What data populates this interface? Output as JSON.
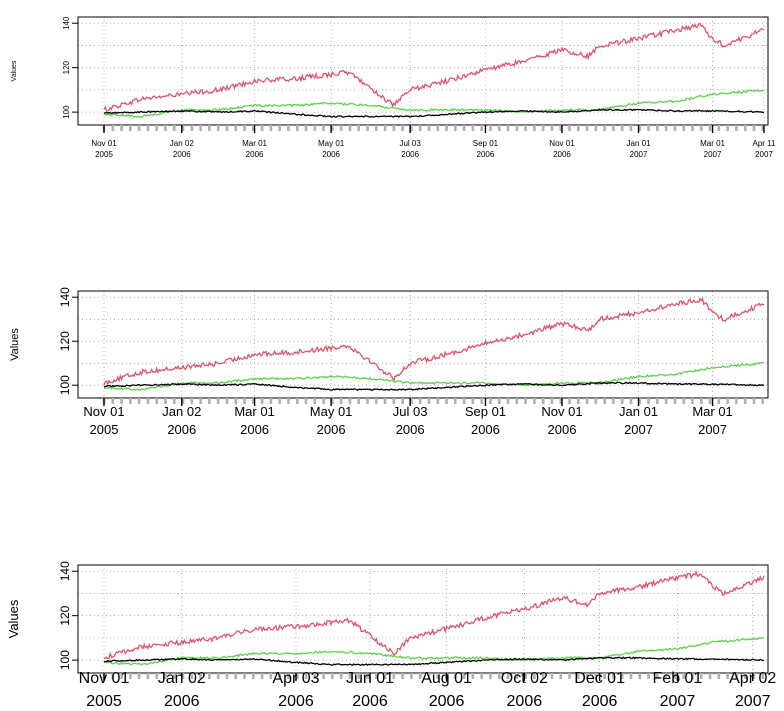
{
  "chart_data": [
    {
      "type": "line",
      "ylabel": "Values",
      "yticks": [
        100,
        120,
        140
      ],
      "ylim": [
        96,
        141
      ],
      "x_range": [
        "2005-11-01",
        "2007-04-11"
      ],
      "xtick_labels": [
        {
          "date": "2005-11-01",
          "top": "Nov 01",
          "bottom": "2005"
        },
        {
          "date": "2006-01-02",
          "top": "Jan 02",
          "bottom": "2006"
        },
        {
          "date": "2006-03-01",
          "top": "Mar 01",
          "bottom": "2006"
        },
        {
          "date": "2006-05-01",
          "top": "May 01",
          "bottom": "2006"
        },
        {
          "date": "2006-07-03",
          "top": "Jul 03",
          "bottom": "2006"
        },
        {
          "date": "2006-09-01",
          "top": "Sep 01",
          "bottom": "2006"
        },
        {
          "date": "2006-11-01",
          "top": "Nov 01",
          "bottom": "2006"
        },
        {
          "date": "2007-01-01",
          "top": "Jan 01",
          "bottom": "2007"
        },
        {
          "date": "2007-03-01",
          "top": "Mar 01",
          "bottom": "2007"
        },
        {
          "date": "2007-04-11",
          "top": "Apr 11",
          "bottom": "2007"
        }
      ],
      "grid": true,
      "series": [
        {
          "color": "#df536b",
          "x": [
            "2005-11-01",
            "2005-12-01",
            "2006-01-02",
            "2006-02-01",
            "2006-03-01",
            "2006-04-03",
            "2006-05-01",
            "2006-05-15",
            "2006-06-01",
            "2006-06-20",
            "2006-07-03",
            "2006-08-01",
            "2006-09-01",
            "2006-10-02",
            "2006-11-01",
            "2006-11-22",
            "2006-12-01",
            "2007-01-01",
            "2007-02-01",
            "2007-02-20",
            "2007-03-01",
            "2007-03-10",
            "2007-04-11"
          ],
          "y": [
            101,
            106,
            108,
            110,
            114,
            115,
            117,
            118,
            111,
            103,
            110,
            114,
            119,
            123,
            128,
            125,
            130,
            133,
            137,
            139,
            133,
            130,
            137
          ]
        },
        {
          "color": "#61d04f",
          "x": [
            "2005-11-01",
            "2005-12-01",
            "2006-01-02",
            "2006-02-01",
            "2006-03-01",
            "2006-04-03",
            "2006-05-01",
            "2006-06-01",
            "2006-07-03",
            "2006-08-01",
            "2006-09-01",
            "2006-10-02",
            "2006-11-01",
            "2006-12-01",
            "2007-01-01",
            "2007-02-01",
            "2007-03-01",
            "2007-04-11"
          ],
          "y": [
            99,
            98,
            101,
            101,
            103,
            103,
            104,
            103,
            101,
            101,
            101,
            100,
            101,
            101,
            104,
            105,
            108,
            110
          ]
        },
        {
          "color": "#000000",
          "x": [
            "2005-11-01",
            "2005-12-01",
            "2006-01-02",
            "2006-02-01",
            "2006-03-01",
            "2006-04-03",
            "2006-05-01",
            "2006-06-01",
            "2006-07-03",
            "2006-08-01",
            "2006-09-01",
            "2006-10-02",
            "2006-11-01",
            "2006-12-01",
            "2007-01-01",
            "2007-02-01",
            "2007-03-01",
            "2007-04-11"
          ],
          "y": [
            99.5,
            100,
            100.5,
            100,
            100.5,
            99,
            98,
            98,
            98,
            99,
            100,
            100.5,
            100,
            101,
            101,
            100.5,
            100.5,
            100
          ]
        }
      ]
    },
    {
      "type": "line",
      "ylabel": "Values",
      "yticks": [
        100,
        120,
        140
      ],
      "ylim": [
        96,
        141
      ],
      "x_range": [
        "2005-11-01",
        "2007-04-11"
      ],
      "xtick_labels": [
        {
          "date": "2005-11-01",
          "top": "Nov 01",
          "bottom": "2005"
        },
        {
          "date": "2006-01-02",
          "top": "Jan 02",
          "bottom": "2006"
        },
        {
          "date": "2006-03-01",
          "top": "Mar 01",
          "bottom": "2006"
        },
        {
          "date": "2006-05-01",
          "top": "May 01",
          "bottom": "2006"
        },
        {
          "date": "2006-07-03",
          "top": "Jul 03",
          "bottom": "2006"
        },
        {
          "date": "2006-09-01",
          "top": "Sep 01",
          "bottom": "2006"
        },
        {
          "date": "2006-11-01",
          "top": "Nov 01",
          "bottom": "2006"
        },
        {
          "date": "2007-01-01",
          "top": "Jan 01",
          "bottom": "2007"
        },
        {
          "date": "2007-03-01",
          "top": "Mar 01",
          "bottom": "2007"
        }
      ],
      "grid": true,
      "series": [
        {
          "color": "#df536b",
          "x": [
            "2005-11-01",
            "2005-12-01",
            "2006-01-02",
            "2006-02-01",
            "2006-03-01",
            "2006-04-03",
            "2006-05-01",
            "2006-05-15",
            "2006-06-01",
            "2006-06-20",
            "2006-07-03",
            "2006-08-01",
            "2006-09-01",
            "2006-10-02",
            "2006-11-01",
            "2006-11-22",
            "2006-12-01",
            "2007-01-01",
            "2007-02-01",
            "2007-02-20",
            "2007-03-01",
            "2007-03-10",
            "2007-04-11"
          ],
          "y": [
            101,
            106,
            108,
            110,
            114,
            115,
            117,
            118,
            111,
            103,
            110,
            114,
            119,
            123,
            128,
            125,
            130,
            133,
            137,
            139,
            133,
            130,
            137
          ]
        },
        {
          "color": "#61d04f",
          "x": [
            "2005-11-01",
            "2005-12-01",
            "2006-01-02",
            "2006-02-01",
            "2006-03-01",
            "2006-04-03",
            "2006-05-01",
            "2006-06-01",
            "2006-07-03",
            "2006-08-01",
            "2006-09-01",
            "2006-10-02",
            "2006-11-01",
            "2006-12-01",
            "2007-01-01",
            "2007-02-01",
            "2007-03-01",
            "2007-04-11"
          ],
          "y": [
            99,
            98,
            101,
            101,
            103,
            103,
            104,
            103,
            101,
            101,
            101,
            100,
            101,
            101,
            104,
            105,
            108,
            110
          ]
        },
        {
          "color": "#000000",
          "x": [
            "2005-11-01",
            "2005-12-01",
            "2006-01-02",
            "2006-02-01",
            "2006-03-01",
            "2006-04-03",
            "2006-05-01",
            "2006-06-01",
            "2006-07-03",
            "2006-08-01",
            "2006-09-01",
            "2006-10-02",
            "2006-11-01",
            "2006-12-01",
            "2007-01-01",
            "2007-02-01",
            "2007-03-01",
            "2007-04-11"
          ],
          "y": [
            99.5,
            100,
            100.5,
            100,
            100.5,
            99,
            98,
            98,
            98,
            99,
            100,
            100.5,
            100,
            101,
            101,
            100.5,
            100.5,
            100
          ]
        }
      ]
    },
    {
      "type": "line",
      "ylabel": "Values",
      "yticks": [
        100,
        120,
        140
      ],
      "ylim": [
        96,
        141
      ],
      "x_range": [
        "2005-11-01",
        "2007-04-11"
      ],
      "xtick_labels": [
        {
          "date": "2005-11-01",
          "top": "Nov 01",
          "bottom": "2005"
        },
        {
          "date": "2006-01-02",
          "top": "Jan 02",
          "bottom": "2006"
        },
        {
          "date": "2006-04-03",
          "top": "Apr 03",
          "bottom": "2006"
        },
        {
          "date": "2006-06-01",
          "top": "Jun 01",
          "bottom": "2006"
        },
        {
          "date": "2006-08-01",
          "top": "Aug 01",
          "bottom": "2006"
        },
        {
          "date": "2006-10-02",
          "top": "Oct 02",
          "bottom": "2006"
        },
        {
          "date": "2006-12-01",
          "top": "Dec 01",
          "bottom": "2006"
        },
        {
          "date": "2007-02-01",
          "top": "Feb 01",
          "bottom": "2007"
        },
        {
          "date": "2007-04-02",
          "top": "Apr 02",
          "bottom": "2007"
        }
      ],
      "grid": true,
      "series": [
        {
          "color": "#df536b",
          "x": [
            "2005-11-01",
            "2005-12-01",
            "2006-01-02",
            "2006-02-01",
            "2006-03-01",
            "2006-04-03",
            "2006-05-01",
            "2006-05-15",
            "2006-06-01",
            "2006-06-20",
            "2006-07-03",
            "2006-08-01",
            "2006-09-01",
            "2006-10-02",
            "2006-11-01",
            "2006-11-22",
            "2006-12-01",
            "2007-01-01",
            "2007-02-01",
            "2007-02-20",
            "2007-03-01",
            "2007-03-10",
            "2007-04-11"
          ],
          "y": [
            101,
            106,
            108,
            110,
            114,
            115,
            117,
            118,
            111,
            103,
            110,
            114,
            119,
            123,
            128,
            125,
            130,
            133,
            137,
            139,
            133,
            130,
            137
          ]
        },
        {
          "color": "#61d04f",
          "x": [
            "2005-11-01",
            "2005-12-01",
            "2006-01-02",
            "2006-02-01",
            "2006-03-01",
            "2006-04-03",
            "2006-05-01",
            "2006-06-01",
            "2006-07-03",
            "2006-08-01",
            "2006-09-01",
            "2006-10-02",
            "2006-11-01",
            "2006-12-01",
            "2007-01-01",
            "2007-02-01",
            "2007-03-01",
            "2007-04-11"
          ],
          "y": [
            99,
            98,
            101,
            101,
            103,
            103,
            104,
            103,
            101,
            101,
            101,
            100,
            101,
            101,
            104,
            105,
            108,
            110
          ]
        },
        {
          "color": "#000000",
          "x": [
            "2005-11-01",
            "2005-12-01",
            "2006-01-02",
            "2006-02-01",
            "2006-03-01",
            "2006-04-03",
            "2006-05-01",
            "2006-06-01",
            "2006-07-03",
            "2006-08-01",
            "2006-09-01",
            "2006-10-02",
            "2006-11-01",
            "2006-12-01",
            "2007-01-01",
            "2007-02-01",
            "2007-03-01",
            "2007-04-11"
          ],
          "y": [
            99.5,
            100,
            100.5,
            100,
            100.5,
            99,
            98,
            98,
            98,
            99,
            100,
            100.5,
            100,
            101,
            101,
            100.5,
            100.5,
            100
          ]
        }
      ]
    }
  ]
}
